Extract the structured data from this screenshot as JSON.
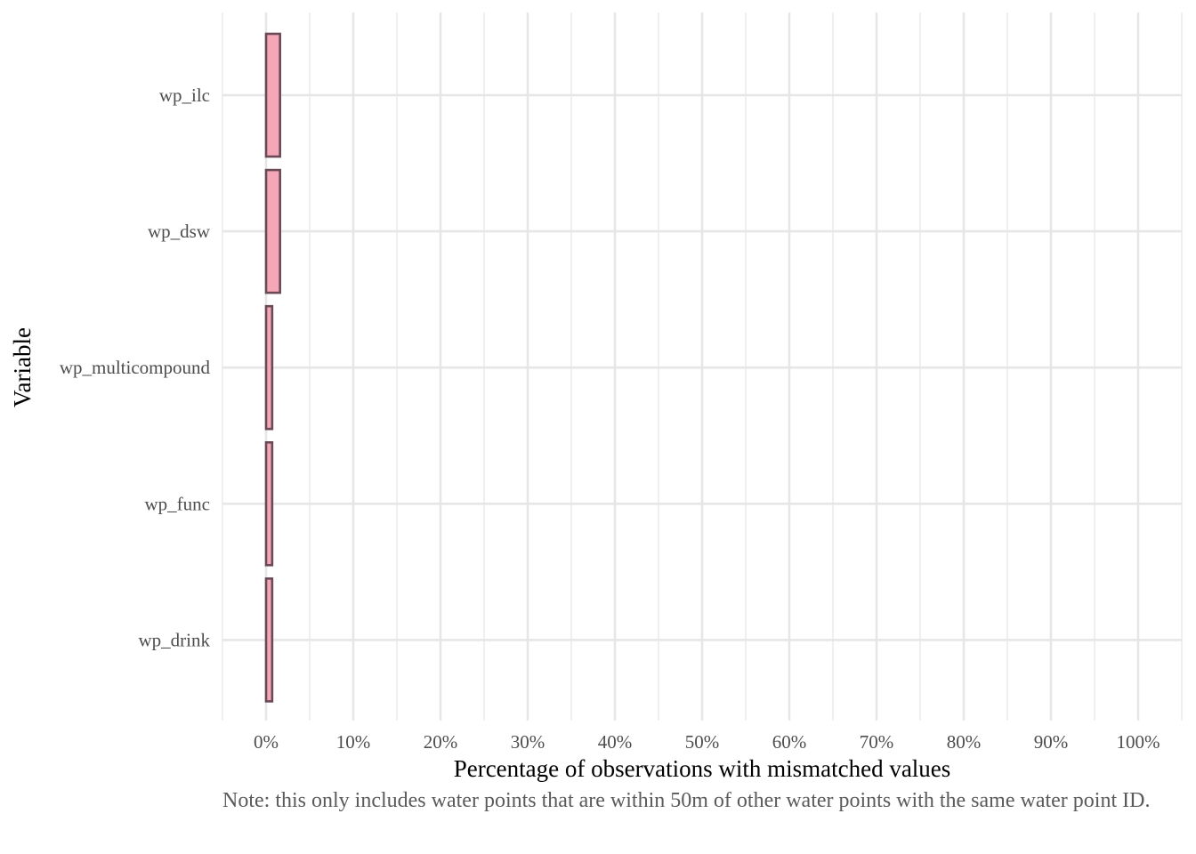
{
  "chart_data": {
    "type": "bar",
    "orientation": "horizontal",
    "title": "",
    "xlabel": "Percentage of observations with mismatched values",
    "ylabel": "Variable",
    "caption": "Note: this only includes water points that are within 50m of other water points with the same water point ID.",
    "categories": [
      "wp_ilc",
      "wp_dsw",
      "wp_multicompound",
      "wp_func",
      "wp_drink"
    ],
    "values": [
      1.6,
      1.6,
      0.7,
      0.7,
      0.7
    ],
    "xlim": [
      -5,
      105
    ],
    "x_ticks": [
      0,
      10,
      20,
      30,
      40,
      50,
      60,
      70,
      80,
      90,
      100
    ],
    "x_tick_labels": [
      "0%",
      "10%",
      "20%",
      "30%",
      "40%",
      "50%",
      "60%",
      "70%",
      "80%",
      "90%",
      "100%"
    ],
    "grid": true,
    "legend": "none",
    "colors": {
      "bar_fill": "#f4a7b6",
      "bar_stroke": "#6b4a58",
      "grid": "#e6e6e6",
      "tick_text": "#4d4d4d",
      "caption_text": "#5a5a5a"
    }
  }
}
